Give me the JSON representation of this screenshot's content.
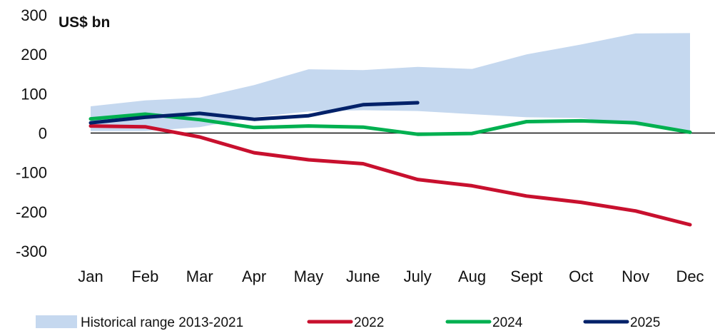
{
  "chart_data": {
    "type": "line",
    "unit_label": "US$ bn",
    "categories": [
      "Jan",
      "Feb",
      "Mar",
      "Apr",
      "May",
      "June",
      "July",
      "Aug",
      "Sept",
      "Oct",
      "Nov",
      "Dec"
    ],
    "ylim": [
      -300,
      300
    ],
    "yticks": [
      300,
      200,
      100,
      0,
      -100,
      -200,
      -300
    ],
    "historical_range": {
      "name": "Historical range 2013-2021",
      "color": "#c5d8ef",
      "upper": [
        68,
        83,
        90,
        122,
        162,
        160,
        168,
        163,
        200,
        225,
        253,
        254
      ],
      "lower": [
        5,
        5,
        15,
        40,
        55,
        58,
        56,
        48,
        40,
        38,
        20,
        5
      ]
    },
    "series": [
      {
        "name": "2022",
        "color": "#c8102e",
        "values": [
          18,
          16,
          -10,
          -50,
          -68,
          -78,
          -118,
          -134,
          -160,
          -176,
          -198,
          -233
        ]
      },
      {
        "name": "2024",
        "color": "#00b050",
        "values": [
          36,
          48,
          34,
          14,
          18,
          15,
          -3,
          -1,
          29,
          31,
          26,
          2
        ]
      },
      {
        "name": "2025",
        "color": "#012169",
        "values": [
          26,
          40,
          50,
          35,
          44,
          72,
          77,
          null,
          null,
          null,
          null,
          null
        ]
      }
    ],
    "legend_position": "bottom",
    "grid": false
  }
}
